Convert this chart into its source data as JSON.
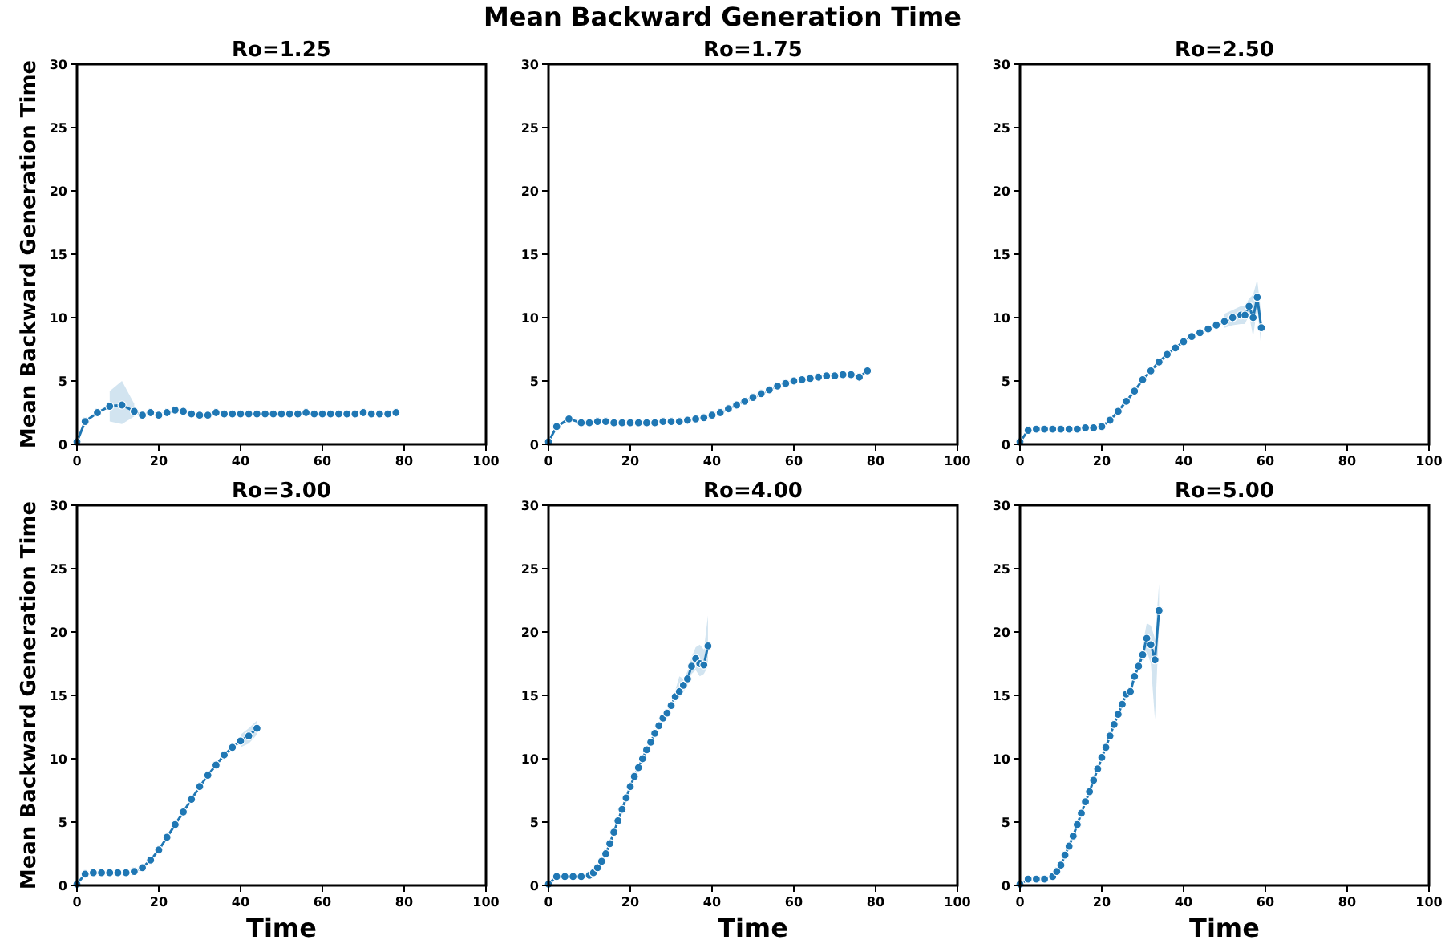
{
  "chart_data": [
    {
      "type": "line",
      "title": "Ro=1.25",
      "ylabel": "Mean Backward Generation Time",
      "annotations": [
        "Mean Backward Generation Time"
      ],
      "xlim": [
        0,
        100
      ],
      "ylim": [
        0,
        30
      ],
      "xticks": [
        0,
        20,
        40,
        60,
        80,
        100
      ],
      "yticks": [
        0,
        5,
        10,
        15,
        20,
        25,
        30
      ],
      "marker": "circle",
      "x": [
        0,
        2,
        5,
        8,
        11,
        14,
        16,
        18,
        20,
        22,
        24,
        26,
        28,
        30,
        32,
        34,
        36,
        38,
        40,
        42,
        44,
        46,
        48,
        50,
        52,
        54,
        56,
        58,
        60,
        62,
        64,
        66,
        68,
        70,
        72,
        74,
        76,
        78
      ],
      "series": [
        {
          "color": "#1f77b4",
          "values": [
            0.2,
            1.8,
            2.5,
            3.0,
            3.1,
            2.6,
            2.3,
            2.5,
            2.3,
            2.5,
            2.7,
            2.6,
            2.4,
            2.3,
            2.3,
            2.5,
            2.4,
            2.4,
            2.4,
            2.4,
            2.4,
            2.4,
            2.4,
            2.4,
            2.4,
            2.4,
            2.5,
            2.4,
            2.4,
            2.4,
            2.4,
            2.4,
            2.4,
            2.5,
            2.4,
            2.4,
            2.4,
            2.5
          ],
          "lower": [
            null,
            null,
            null,
            1.8,
            1.6,
            2.2,
            null,
            null,
            null,
            null,
            null,
            null,
            null,
            null,
            null,
            null,
            null,
            null,
            null,
            null,
            null,
            null,
            null,
            null,
            null,
            null,
            null,
            null,
            null,
            null,
            null,
            null,
            null,
            null,
            null,
            null,
            null,
            null
          ],
          "upper": [
            null,
            null,
            null,
            4.2,
            5.0,
            3.2,
            null,
            null,
            null,
            null,
            null,
            null,
            null,
            null,
            null,
            null,
            null,
            null,
            null,
            null,
            null,
            null,
            null,
            null,
            null,
            null,
            null,
            null,
            null,
            null,
            null,
            null,
            null,
            null,
            null,
            null,
            null,
            null
          ]
        }
      ]
    },
    {
      "type": "line",
      "title": "Ro=1.75",
      "xlim": [
        0,
        100
      ],
      "ylim": [
        0,
        30
      ],
      "xticks": [
        0,
        20,
        40,
        60,
        80,
        100
      ],
      "yticks": [
        0,
        5,
        10,
        15,
        20,
        25,
        30
      ],
      "marker": "circle",
      "x": [
        0,
        2,
        5,
        8,
        10,
        12,
        14,
        16,
        18,
        20,
        22,
        24,
        26,
        28,
        30,
        32,
        34,
        36,
        38,
        40,
        42,
        44,
        46,
        48,
        50,
        52,
        54,
        56,
        58,
        60,
        62,
        64,
        66,
        68,
        70,
        72,
        74,
        76,
        78
      ],
      "series": [
        {
          "color": "#1f77b4",
          "values": [
            0.2,
            1.4,
            2.0,
            1.7,
            1.7,
            1.8,
            1.8,
            1.7,
            1.7,
            1.7,
            1.7,
            1.7,
            1.7,
            1.8,
            1.8,
            1.8,
            1.9,
            2.0,
            2.1,
            2.3,
            2.5,
            2.8,
            3.1,
            3.4,
            3.7,
            4.0,
            4.3,
            4.6,
            4.8,
            5.0,
            5.1,
            5.2,
            5.3,
            5.4,
            5.4,
            5.5,
            5.5,
            5.3,
            5.8
          ]
        }
      ]
    },
    {
      "type": "line",
      "title": "Ro=2.50",
      "xlim": [
        0,
        100
      ],
      "ylim": [
        0,
        30
      ],
      "xticks": [
        0,
        20,
        40,
        60,
        80,
        100
      ],
      "yticks": [
        0,
        5,
        10,
        15,
        20,
        25,
        30
      ],
      "marker": "circle",
      "x": [
        0,
        2,
        4,
        6,
        8,
        10,
        12,
        14,
        16,
        18,
        20,
        22,
        24,
        26,
        28,
        30,
        32,
        34,
        36,
        38,
        40,
        42,
        44,
        46,
        48,
        50,
        52,
        54,
        55,
        56,
        57,
        58,
        59
      ],
      "series": [
        {
          "color": "#1f77b4",
          "values": [
            0.2,
            1.1,
            1.2,
            1.2,
            1.2,
            1.2,
            1.2,
            1.2,
            1.3,
            1.3,
            1.4,
            1.9,
            2.6,
            3.4,
            4.2,
            5.1,
            5.8,
            6.5,
            7.1,
            7.6,
            8.1,
            8.5,
            8.8,
            9.1,
            9.4,
            9.7,
            10.0,
            10.2,
            10.2,
            10.9,
            10.0,
            11.6,
            9.2
          ],
          "lower": [
            null,
            null,
            null,
            null,
            null,
            null,
            null,
            null,
            null,
            null,
            null,
            null,
            null,
            null,
            null,
            null,
            null,
            null,
            null,
            null,
            null,
            null,
            null,
            null,
            null,
            9.2,
            9.4,
            9.5,
            9.5,
            10.2,
            8.5,
            10.8,
            7.6
          ],
          "upper": [
            null,
            null,
            null,
            null,
            null,
            null,
            null,
            null,
            null,
            null,
            null,
            null,
            null,
            null,
            null,
            null,
            null,
            null,
            null,
            null,
            null,
            null,
            null,
            null,
            null,
            10.3,
            10.6,
            10.9,
            10.9,
            11.5,
            11.8,
            13.0,
            10.2
          ]
        }
      ]
    },
    {
      "type": "line",
      "title": "Ro=3.00",
      "xlabel": "Time",
      "ylabel": "Mean Backward Generation Time",
      "xlim": [
        0,
        100
      ],
      "ylim": [
        0,
        30
      ],
      "xticks": [
        0,
        20,
        40,
        60,
        80,
        100
      ],
      "yticks": [
        0,
        5,
        10,
        15,
        20,
        25,
        30
      ],
      "marker": "circle",
      "x": [
        0,
        2,
        4,
        6,
        8,
        10,
        12,
        14,
        16,
        18,
        20,
        22,
        24,
        26,
        28,
        30,
        32,
        34,
        36,
        38,
        40,
        42,
        44
      ],
      "series": [
        {
          "color": "#1f77b4",
          "values": [
            0.1,
            0.9,
            1.0,
            1.0,
            1.0,
            1.0,
            1.0,
            1.1,
            1.4,
            2.0,
            2.8,
            3.8,
            4.8,
            5.8,
            6.8,
            7.8,
            8.7,
            9.5,
            10.3,
            10.9,
            11.4,
            11.8,
            12.4
          ],
          "lower": [
            null,
            null,
            null,
            null,
            null,
            null,
            null,
            null,
            null,
            null,
            null,
            null,
            null,
            null,
            null,
            null,
            null,
            null,
            null,
            null,
            10.9,
            11.2,
            11.9
          ],
          "upper": [
            null,
            null,
            null,
            null,
            null,
            null,
            null,
            null,
            null,
            null,
            null,
            null,
            null,
            null,
            null,
            null,
            null,
            null,
            null,
            null,
            11.9,
            12.4,
            13.0
          ]
        }
      ]
    },
    {
      "type": "line",
      "title": "Ro=4.00",
      "xlabel": "Time",
      "xlim": [
        0,
        100
      ],
      "ylim": [
        0,
        30
      ],
      "xticks": [
        0,
        20,
        40,
        60,
        80,
        100
      ],
      "yticks": [
        0,
        5,
        10,
        15,
        20,
        25,
        30
      ],
      "marker": "circle",
      "x": [
        0,
        2,
        4,
        6,
        8,
        10,
        11,
        12,
        13,
        14,
        15,
        16,
        17,
        18,
        19,
        20,
        21,
        22,
        23,
        24,
        25,
        26,
        27,
        28,
        29,
        30,
        31,
        32,
        33,
        34,
        35,
        36,
        37,
        38,
        39
      ],
      "series": [
        {
          "color": "#1f77b4",
          "values": [
            0.1,
            0.7,
            0.7,
            0.7,
            0.7,
            0.8,
            1.0,
            1.4,
            1.9,
            2.5,
            3.3,
            4.2,
            5.1,
            6.0,
            6.9,
            7.8,
            8.6,
            9.3,
            10.0,
            10.7,
            11.3,
            12.0,
            12.6,
            13.2,
            13.6,
            14.2,
            14.9,
            15.3,
            15.8,
            16.3,
            17.3,
            17.9,
            17.5,
            17.4,
            18.9
          ],
          "lower": [
            null,
            null,
            null,
            null,
            null,
            null,
            null,
            null,
            null,
            null,
            null,
            null,
            null,
            null,
            null,
            null,
            null,
            null,
            null,
            null,
            null,
            null,
            null,
            null,
            null,
            null,
            14.5,
            14.8,
            15.3,
            15.8,
            16.7,
            17.0,
            16.5,
            16.7,
            17.3
          ],
          "upper": [
            null,
            null,
            null,
            null,
            null,
            null,
            null,
            null,
            null,
            null,
            null,
            null,
            null,
            null,
            null,
            null,
            null,
            null,
            null,
            null,
            null,
            null,
            null,
            null,
            null,
            null,
            15.4,
            16.5,
            16.3,
            16.9,
            18.0,
            18.8,
            19.0,
            18.6,
            21.3
          ]
        }
      ]
    },
    {
      "type": "line",
      "title": "Ro=5.00",
      "xlabel": "Time",
      "xlim": [
        0,
        100
      ],
      "ylim": [
        0,
        30
      ],
      "xticks": [
        0,
        20,
        40,
        60,
        80,
        100
      ],
      "yticks": [
        0,
        5,
        10,
        15,
        20,
        25,
        30
      ],
      "marker": "circle",
      "x": [
        0,
        2,
        4,
        6,
        8,
        9,
        10,
        11,
        12,
        13,
        14,
        15,
        16,
        17,
        18,
        19,
        20,
        21,
        22,
        23,
        24,
        25,
        26,
        27,
        28,
        29,
        30,
        31,
        32,
        33,
        34
      ],
      "series": [
        {
          "color": "#1f77b4",
          "values": [
            0.1,
            0.5,
            0.5,
            0.5,
            0.7,
            1.1,
            1.6,
            2.4,
            3.1,
            3.9,
            4.8,
            5.7,
            6.6,
            7.4,
            8.3,
            9.2,
            10.1,
            10.9,
            11.8,
            12.7,
            13.5,
            14.3,
            15.1,
            15.3,
            16.5,
            17.3,
            18.2,
            19.5,
            19.0,
            17.8,
            21.7
          ],
          "lower": [
            null,
            null,
            null,
            null,
            null,
            null,
            null,
            null,
            null,
            null,
            null,
            null,
            null,
            null,
            null,
            null,
            null,
            null,
            null,
            null,
            null,
            null,
            null,
            null,
            null,
            null,
            17.5,
            18.5,
            17.5,
            13.1,
            20.5
          ],
          "upper": [
            null,
            null,
            null,
            null,
            null,
            null,
            null,
            null,
            null,
            null,
            null,
            null,
            null,
            null,
            null,
            null,
            null,
            null,
            null,
            null,
            null,
            null,
            null,
            null,
            null,
            null,
            19.0,
            20.7,
            20.5,
            19.5,
            23.8
          ]
        }
      ]
    }
  ]
}
